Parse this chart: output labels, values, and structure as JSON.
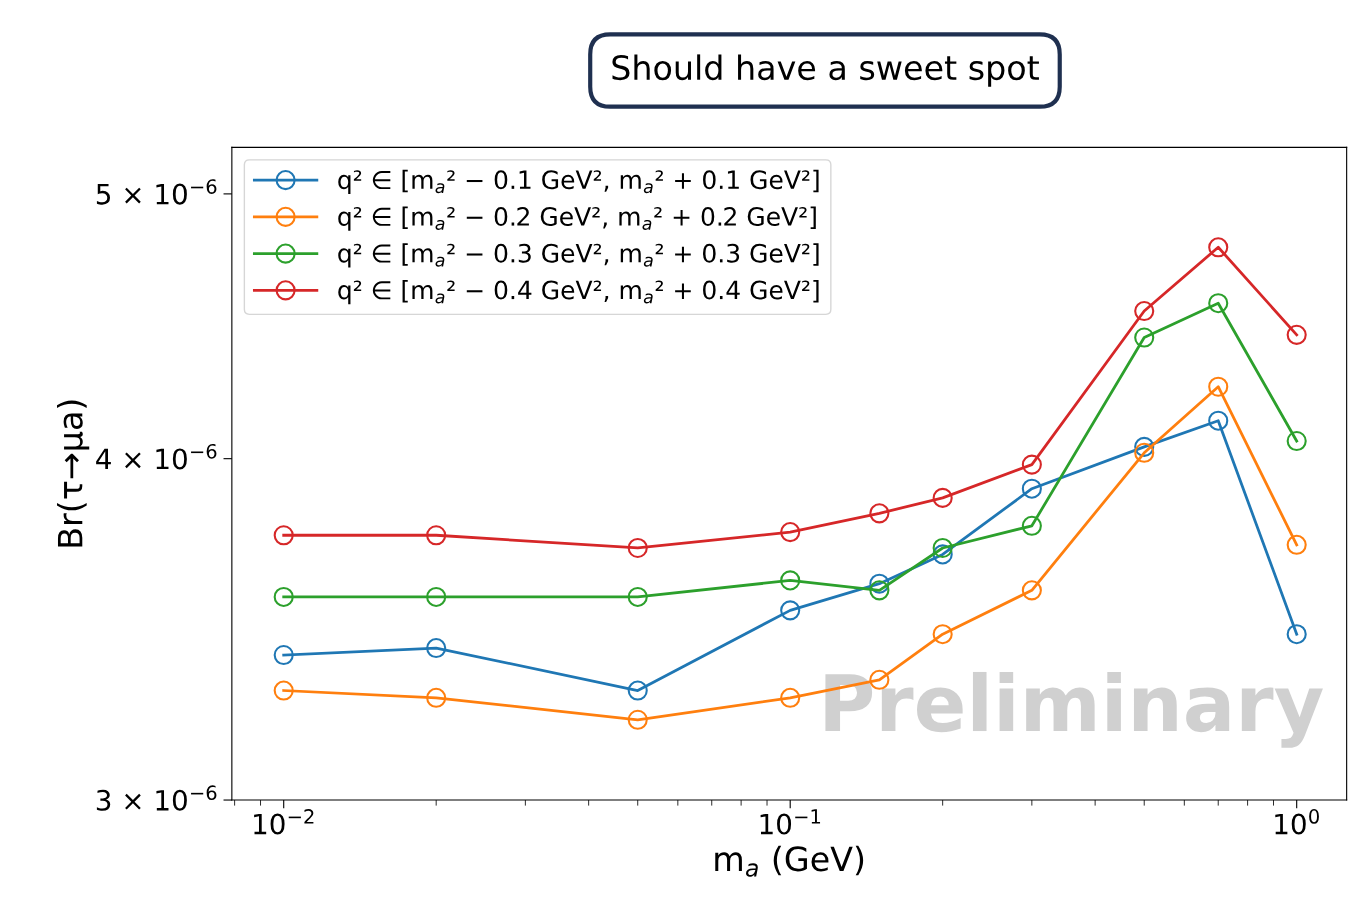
{
  "chart_data": {
    "type": "line",
    "xlabel": "m$_{a}$ (GeV)",
    "ylabel": "Br(τ→μa)",
    "log": "xy",
    "marker": "circle",
    "legend": "top left",
    "grid": false,
    "x": [
      0.01,
      0.02,
      0.05,
      0.1,
      0.15,
      0.2,
      0.3,
      0.5,
      0.7,
      1.0
    ],
    "xlim": [
      0.0079,
      1.255
    ],
    "xticks": [
      {
        "value": 0.01,
        "label": "10$^{−2}$"
      },
      {
        "value": 0.1,
        "label": "10$^{−1}$"
      },
      {
        "value": 1,
        "label": "10$^{0}$"
      }
    ],
    "ylim": [
      3e-06,
      5.2e-06
    ],
    "yticks": [
      {
        "value": 3e-06,
        "label": "3 × 10$^{−6}$"
      },
      {
        "value": 4e-06,
        "label": "4 × 10$^{−6}$"
      },
      {
        "value": 5e-06,
        "label": "5 × 10$^{−6}$"
      }
    ],
    "series": [
      {
        "name": "q² ∈ [m$_{a}$² − 0.1 GeV², m$_{a}$² + 0.1 GeV²]",
        "color": "#1f77b4",
        "values": [
          3.39e-06,
          3.41e-06,
          3.29e-06,
          3.52e-06,
          3.6e-06,
          3.69e-06,
          3.9e-06,
          4.04e-06,
          4.13e-06,
          3.45e-06
        ]
      },
      {
        "name": "q² ∈ [m$_{a}$² − 0.2 GeV², m$_{a}$² + 0.2 GeV²]",
        "color": "#ff7f0e",
        "values": [
          3.29e-06,
          3.27e-06,
          3.21e-06,
          3.27e-06,
          3.32e-06,
          3.45e-06,
          3.58e-06,
          4.02e-06,
          4.25e-06,
          3.72e-06
        ]
      },
      {
        "name": "q² ∈ [m$_{a}$² − 0.3 GeV², m$_{a}$² + 0.3 GeV²]",
        "color": "#2ca02c",
        "values": [
          3.56e-06,
          3.56e-06,
          3.56e-06,
          3.61e-06,
          3.58e-06,
          3.71e-06,
          3.78e-06,
          4.43e-06,
          4.56e-06,
          4.06e-06
        ]
      },
      {
        "name": "q² ∈ [m$_{a}$² − 0.4 GeV², m$_{a}$² + 0.4 GeV²]",
        "color": "#d62728",
        "values": [
          3.75e-06,
          3.75e-06,
          3.71e-06,
          3.76e-06,
          3.82e-06,
          3.87e-06,
          3.98e-06,
          4.53e-06,
          4.78e-06,
          4.44e-06
        ]
      }
    ],
    "annotations": [
      "Should have a sweet spot",
      "Preliminary"
    ]
  }
}
